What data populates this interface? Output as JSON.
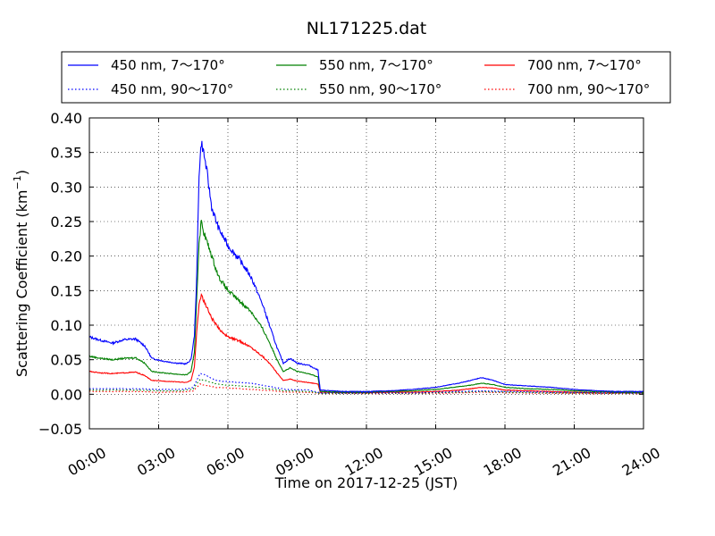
{
  "chart_data": {
    "type": "line",
    "title": "NL171225.dat",
    "xlabel": "Time on 2017-12-25 (JST)",
    "ylabel": "Scattering Coefficient (km",
    "ylabel_exp": "−1",
    "ylabel_close": ")",
    "xlim": [
      0,
      24
    ],
    "ylim": [
      -0.05,
      0.4
    ],
    "x_ticks": [
      0,
      3,
      6,
      9,
      12,
      15,
      18,
      21,
      24
    ],
    "x_tick_labels": [
      "00:00",
      "03:00",
      "06:00",
      "09:00",
      "12:00",
      "15:00",
      "18:00",
      "21:00",
      "24:00"
    ],
    "y_ticks": [
      -0.05,
      0.0,
      0.05,
      0.1,
      0.15,
      0.2,
      0.25,
      0.3,
      0.35,
      0.4
    ],
    "y_tick_labels": [
      "−0.05",
      "0.00",
      "0.05",
      "0.10",
      "0.15",
      "0.20",
      "0.25",
      "0.30",
      "0.35",
      "0.40"
    ],
    "grid": true,
    "legend_position": "top, above plot",
    "series": [
      {
        "name": "450 nm, 7～170°",
        "color": "#0000ff",
        "style": "solid",
        "points": [
          [
            0,
            0.083
          ],
          [
            0.5,
            0.078
          ],
          [
            1,
            0.074
          ],
          [
            1.5,
            0.079
          ],
          [
            2,
            0.08
          ],
          [
            2.4,
            0.07
          ],
          [
            2.7,
            0.052
          ],
          [
            3.2,
            0.048
          ],
          [
            3.8,
            0.045
          ],
          [
            4.2,
            0.044
          ],
          [
            4.4,
            0.05
          ],
          [
            4.55,
            0.085
          ],
          [
            4.65,
            0.17
          ],
          [
            4.75,
            0.32
          ],
          [
            4.85,
            0.365
          ],
          [
            4.95,
            0.35
          ],
          [
            5.1,
            0.32
          ],
          [
            5.3,
            0.27
          ],
          [
            5.6,
            0.24
          ],
          [
            6,
            0.215
          ],
          [
            6.5,
            0.195
          ],
          [
            7,
            0.17
          ],
          [
            7.5,
            0.13
          ],
          [
            7.8,
            0.1
          ],
          [
            8.1,
            0.07
          ],
          [
            8.4,
            0.045
          ],
          [
            8.7,
            0.052
          ],
          [
            9,
            0.045
          ],
          [
            9.5,
            0.042
          ],
          [
            9.9,
            0.035
          ],
          [
            10,
            0.006
          ],
          [
            11,
            0.004
          ],
          [
            12,
            0.004
          ],
          [
            13,
            0.005
          ],
          [
            14,
            0.007
          ],
          [
            15,
            0.01
          ],
          [
            16,
            0.016
          ],
          [
            16.5,
            0.02
          ],
          [
            17,
            0.024
          ],
          [
            17.5,
            0.02
          ],
          [
            18,
            0.014
          ],
          [
            19,
            0.012
          ],
          [
            20,
            0.01
          ],
          [
            21,
            0.007
          ],
          [
            22,
            0.005
          ],
          [
            23,
            0.004
          ],
          [
            24,
            0.004
          ]
        ]
      },
      {
        "name": "450 nm, 90～170°",
        "color": "#0000ff",
        "style": "dotted",
        "points": [
          [
            0,
            0.008
          ],
          [
            1,
            0.008
          ],
          [
            2,
            0.008
          ],
          [
            3,
            0.007
          ],
          [
            4,
            0.007
          ],
          [
            4.5,
            0.01
          ],
          [
            4.8,
            0.03
          ],
          [
            5,
            0.028
          ],
          [
            5.5,
            0.02
          ],
          [
            6,
            0.018
          ],
          [
            7,
            0.016
          ],
          [
            8,
            0.01
          ],
          [
            8.5,
            0.007
          ],
          [
            9.5,
            0.006
          ],
          [
            10,
            0.002
          ],
          [
            12,
            0.002
          ],
          [
            14,
            0.002
          ],
          [
            16,
            0.004
          ],
          [
            17,
            0.005
          ],
          [
            18,
            0.004
          ],
          [
            20,
            0.003
          ],
          [
            22,
            0.002
          ],
          [
            24,
            0.002
          ]
        ]
      },
      {
        "name": "550 nm, 7～170°",
        "color": "#008000",
        "style": "solid",
        "points": [
          [
            0,
            0.055
          ],
          [
            0.5,
            0.052
          ],
          [
            1,
            0.05
          ],
          [
            1.5,
            0.052
          ],
          [
            2,
            0.053
          ],
          [
            2.4,
            0.045
          ],
          [
            2.7,
            0.033
          ],
          [
            3.2,
            0.031
          ],
          [
            3.8,
            0.029
          ],
          [
            4.2,
            0.028
          ],
          [
            4.4,
            0.033
          ],
          [
            4.55,
            0.06
          ],
          [
            4.65,
            0.14
          ],
          [
            4.75,
            0.22
          ],
          [
            4.85,
            0.25
          ],
          [
            4.95,
            0.235
          ],
          [
            5.1,
            0.22
          ],
          [
            5.3,
            0.2
          ],
          [
            5.6,
            0.17
          ],
          [
            6,
            0.15
          ],
          [
            6.5,
            0.135
          ],
          [
            7,
            0.12
          ],
          [
            7.5,
            0.095
          ],
          [
            7.8,
            0.075
          ],
          [
            8.1,
            0.052
          ],
          [
            8.4,
            0.033
          ],
          [
            8.7,
            0.038
          ],
          [
            9,
            0.033
          ],
          [
            9.5,
            0.03
          ],
          [
            9.9,
            0.025
          ],
          [
            10,
            0.004
          ],
          [
            11,
            0.003
          ],
          [
            12,
            0.003
          ],
          [
            13,
            0.004
          ],
          [
            14,
            0.005
          ],
          [
            15,
            0.007
          ],
          [
            16,
            0.011
          ],
          [
            16.5,
            0.013
          ],
          [
            17,
            0.016
          ],
          [
            17.5,
            0.014
          ],
          [
            18,
            0.01
          ],
          [
            19,
            0.008
          ],
          [
            20,
            0.007
          ],
          [
            21,
            0.005
          ],
          [
            22,
            0.004
          ],
          [
            23,
            0.003
          ],
          [
            24,
            0.003
          ]
        ]
      },
      {
        "name": "550 nm, 90～170°",
        "color": "#008000",
        "style": "dotted",
        "points": [
          [
            0,
            0.006
          ],
          [
            1,
            0.006
          ],
          [
            2,
            0.006
          ],
          [
            3,
            0.005
          ],
          [
            4,
            0.005
          ],
          [
            4.5,
            0.008
          ],
          [
            4.8,
            0.022
          ],
          [
            5,
            0.02
          ],
          [
            5.5,
            0.015
          ],
          [
            6,
            0.013
          ],
          [
            7,
            0.011
          ],
          [
            8,
            0.007
          ],
          [
            8.5,
            0.005
          ],
          [
            9.5,
            0.004
          ],
          [
            10,
            0.0015
          ],
          [
            12,
            0.0015
          ],
          [
            14,
            0.0015
          ],
          [
            16,
            0.003
          ],
          [
            17,
            0.004
          ],
          [
            18,
            0.003
          ],
          [
            20,
            0.002
          ],
          [
            22,
            0.0015
          ],
          [
            24,
            0.0015
          ]
        ]
      },
      {
        "name": "700 nm, 7～170°",
        "color": "#ff0000",
        "style": "solid",
        "points": [
          [
            0,
            0.033
          ],
          [
            0.5,
            0.031
          ],
          [
            1,
            0.03
          ],
          [
            1.5,
            0.031
          ],
          [
            2,
            0.032
          ],
          [
            2.4,
            0.027
          ],
          [
            2.7,
            0.02
          ],
          [
            3.2,
            0.019
          ],
          [
            3.8,
            0.018
          ],
          [
            4.2,
            0.017
          ],
          [
            4.4,
            0.02
          ],
          [
            4.55,
            0.04
          ],
          [
            4.65,
            0.09
          ],
          [
            4.75,
            0.13
          ],
          [
            4.85,
            0.145
          ],
          [
            4.95,
            0.135
          ],
          [
            5.1,
            0.125
          ],
          [
            5.3,
            0.11
          ],
          [
            5.6,
            0.095
          ],
          [
            6,
            0.083
          ],
          [
            6.5,
            0.077
          ],
          [
            7,
            0.068
          ],
          [
            7.5,
            0.055
          ],
          [
            7.8,
            0.045
          ],
          [
            8.1,
            0.032
          ],
          [
            8.4,
            0.02
          ],
          [
            8.7,
            0.022
          ],
          [
            9,
            0.019
          ],
          [
            9.5,
            0.017
          ],
          [
            9.9,
            0.015
          ],
          [
            10,
            0.003
          ],
          [
            11,
            0.002
          ],
          [
            12,
            0.002
          ],
          [
            13,
            0.003
          ],
          [
            14,
            0.003
          ],
          [
            15,
            0.004
          ],
          [
            16,
            0.006
          ],
          [
            16.5,
            0.008
          ],
          [
            17,
            0.01
          ],
          [
            17.5,
            0.009
          ],
          [
            18,
            0.006
          ],
          [
            19,
            0.005
          ],
          [
            20,
            0.004
          ],
          [
            21,
            0.003
          ],
          [
            22,
            0.002
          ],
          [
            23,
            0.002
          ],
          [
            24,
            0.002
          ]
        ]
      },
      {
        "name": "700 nm, 90～170°",
        "color": "#ff0000",
        "style": "dotted",
        "points": [
          [
            0,
            0.004
          ],
          [
            1,
            0.004
          ],
          [
            2,
            0.004
          ],
          [
            3,
            0.003
          ],
          [
            4,
            0.003
          ],
          [
            4.5,
            0.005
          ],
          [
            4.8,
            0.015
          ],
          [
            5,
            0.013
          ],
          [
            5.5,
            0.01
          ],
          [
            6,
            0.009
          ],
          [
            7,
            0.007
          ],
          [
            8,
            0.005
          ],
          [
            8.5,
            0.003
          ],
          [
            9.5,
            0.003
          ],
          [
            10,
            0.001
          ],
          [
            12,
            0.001
          ],
          [
            14,
            0.001
          ],
          [
            16,
            0.002
          ],
          [
            17,
            0.003
          ],
          [
            18,
            0.002
          ],
          [
            20,
            0.0015
          ],
          [
            22,
            0.001
          ],
          [
            24,
            0.001
          ]
        ]
      }
    ]
  }
}
